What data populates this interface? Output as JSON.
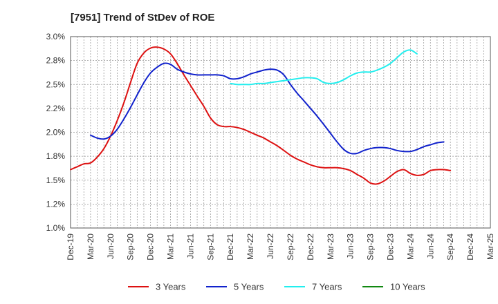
{
  "chart_data": {
    "type": "line",
    "title": "[7951]  Trend of StDev of ROE",
    "xlabel": "",
    "ylabel": "",
    "x_tick_labels": [
      "Dec-19",
      "Mar-20",
      "Jun-20",
      "Sep-20",
      "Dec-20",
      "Mar-21",
      "Jun-21",
      "Sep-21",
      "Dec-21",
      "Mar-22",
      "Jun-22",
      "Sep-22",
      "Dec-22",
      "Mar-23",
      "Jun-23",
      "Sep-23",
      "Dec-23",
      "Mar-24",
      "Jun-24",
      "Sep-24",
      "Dec-24",
      "Mar-25"
    ],
    "y_ticks": [
      1.0,
      1.25,
      1.5,
      1.75,
      2.0,
      2.25,
      2.5,
      2.75,
      3.0
    ],
    "y_tick_labels": [
      "1.0%",
      "1.2%",
      "1.5%",
      "1.8%",
      "2.0%",
      "2.2%",
      "2.5%",
      "2.8%",
      "3.0%"
    ],
    "ylim": [
      1.0,
      3.0
    ],
    "grid": true,
    "legend_position": "bottom",
    "series": [
      {
        "name": "3 Years",
        "color": "#dd1111",
        "points": [
          [
            0,
            1.61
          ],
          [
            0.33,
            1.64
          ],
          [
            0.67,
            1.67
          ],
          [
            1,
            1.68
          ],
          [
            1.33,
            1.74
          ],
          [
            1.67,
            1.83
          ],
          [
            2,
            1.96
          ],
          [
            2.33,
            2.12
          ],
          [
            2.67,
            2.31
          ],
          [
            3,
            2.52
          ],
          [
            3.33,
            2.72
          ],
          [
            3.67,
            2.83
          ],
          [
            4,
            2.88
          ],
          [
            4.33,
            2.89
          ],
          [
            4.67,
            2.87
          ],
          [
            5,
            2.82
          ],
          [
            5.33,
            2.72
          ],
          [
            5.67,
            2.6
          ],
          [
            6,
            2.49
          ],
          [
            6.33,
            2.38
          ],
          [
            6.67,
            2.27
          ],
          [
            7,
            2.15
          ],
          [
            7.33,
            2.08
          ],
          [
            7.67,
            2.06
          ],
          [
            8,
            2.06
          ],
          [
            8.33,
            2.05
          ],
          [
            8.67,
            2.03
          ],
          [
            9,
            2.0
          ],
          [
            9.33,
            1.97
          ],
          [
            9.67,
            1.94
          ],
          [
            10,
            1.9
          ],
          [
            10.33,
            1.86
          ],
          [
            10.67,
            1.81
          ],
          [
            11,
            1.76
          ],
          [
            11.33,
            1.72
          ],
          [
            11.67,
            1.69
          ],
          [
            12,
            1.66
          ],
          [
            12.33,
            1.64
          ],
          [
            12.67,
            1.63
          ],
          [
            13,
            1.63
          ],
          [
            13.33,
            1.63
          ],
          [
            13.67,
            1.62
          ],
          [
            14,
            1.6
          ],
          [
            14.33,
            1.56
          ],
          [
            14.67,
            1.52
          ],
          [
            15,
            1.47
          ],
          [
            15.33,
            1.46
          ],
          [
            15.67,
            1.49
          ],
          [
            16,
            1.54
          ],
          [
            16.33,
            1.59
          ],
          [
            16.67,
            1.61
          ],
          [
            17,
            1.57
          ],
          [
            17.33,
            1.55
          ],
          [
            17.67,
            1.56
          ],
          [
            18,
            1.6
          ],
          [
            18.33,
            1.61
          ],
          [
            18.67,
            1.61
          ],
          [
            19,
            1.6
          ]
        ]
      },
      {
        "name": "5 Years",
        "color": "#1122cc",
        "points": [
          [
            1,
            1.97
          ],
          [
            1.33,
            1.94
          ],
          [
            1.67,
            1.93
          ],
          [
            2,
            1.96
          ],
          [
            2.33,
            2.03
          ],
          [
            2.67,
            2.14
          ],
          [
            3,
            2.26
          ],
          [
            3.33,
            2.39
          ],
          [
            3.67,
            2.52
          ],
          [
            4,
            2.62
          ],
          [
            4.33,
            2.68
          ],
          [
            4.67,
            2.72
          ],
          [
            5,
            2.71
          ],
          [
            5.33,
            2.66
          ],
          [
            5.67,
            2.63
          ],
          [
            6,
            2.61
          ],
          [
            6.33,
            2.6
          ],
          [
            6.67,
            2.6
          ],
          [
            7,
            2.6
          ],
          [
            7.33,
            2.6
          ],
          [
            7.67,
            2.59
          ],
          [
            8,
            2.56
          ],
          [
            8.33,
            2.56
          ],
          [
            8.67,
            2.58
          ],
          [
            9,
            2.61
          ],
          [
            9.33,
            2.63
          ],
          [
            9.67,
            2.65
          ],
          [
            10,
            2.66
          ],
          [
            10.33,
            2.65
          ],
          [
            10.67,
            2.6
          ],
          [
            11,
            2.5
          ],
          [
            11.33,
            2.41
          ],
          [
            11.67,
            2.33
          ],
          [
            12,
            2.25
          ],
          [
            12.33,
            2.17
          ],
          [
            12.67,
            2.08
          ],
          [
            13,
            1.99
          ],
          [
            13.33,
            1.9
          ],
          [
            13.67,
            1.82
          ],
          [
            14,
            1.78
          ],
          [
            14.33,
            1.78
          ],
          [
            14.67,
            1.81
          ],
          [
            15,
            1.83
          ],
          [
            15.33,
            1.84
          ],
          [
            15.67,
            1.84
          ],
          [
            16,
            1.83
          ],
          [
            16.33,
            1.81
          ],
          [
            16.67,
            1.8
          ],
          [
            17,
            1.8
          ],
          [
            17.33,
            1.82
          ],
          [
            17.67,
            1.85
          ],
          [
            18,
            1.87
          ],
          [
            18.33,
            1.89
          ],
          [
            18.67,
            1.9
          ]
        ]
      },
      {
        "name": "7 Years",
        "color": "#22eeee",
        "points": [
          [
            8,
            2.51
          ],
          [
            8.33,
            2.5
          ],
          [
            8.67,
            2.5
          ],
          [
            9,
            2.5
          ],
          [
            9.33,
            2.51
          ],
          [
            9.67,
            2.51
          ],
          [
            10,
            2.52
          ],
          [
            10.33,
            2.53
          ],
          [
            10.67,
            2.54
          ],
          [
            11,
            2.55
          ],
          [
            11.33,
            2.56
          ],
          [
            11.67,
            2.57
          ],
          [
            12,
            2.57
          ],
          [
            12.33,
            2.56
          ],
          [
            12.67,
            2.52
          ],
          [
            13,
            2.51
          ],
          [
            13.33,
            2.52
          ],
          [
            13.67,
            2.55
          ],
          [
            14,
            2.59
          ],
          [
            14.33,
            2.62
          ],
          [
            14.67,
            2.63
          ],
          [
            15,
            2.63
          ],
          [
            15.33,
            2.65
          ],
          [
            15.67,
            2.68
          ],
          [
            16,
            2.72
          ],
          [
            16.33,
            2.78
          ],
          [
            16.67,
            2.84
          ],
          [
            17,
            2.86
          ],
          [
            17.33,
            2.82
          ]
        ]
      },
      {
        "name": "10 Years",
        "color": "#118811",
        "points": []
      }
    ]
  }
}
